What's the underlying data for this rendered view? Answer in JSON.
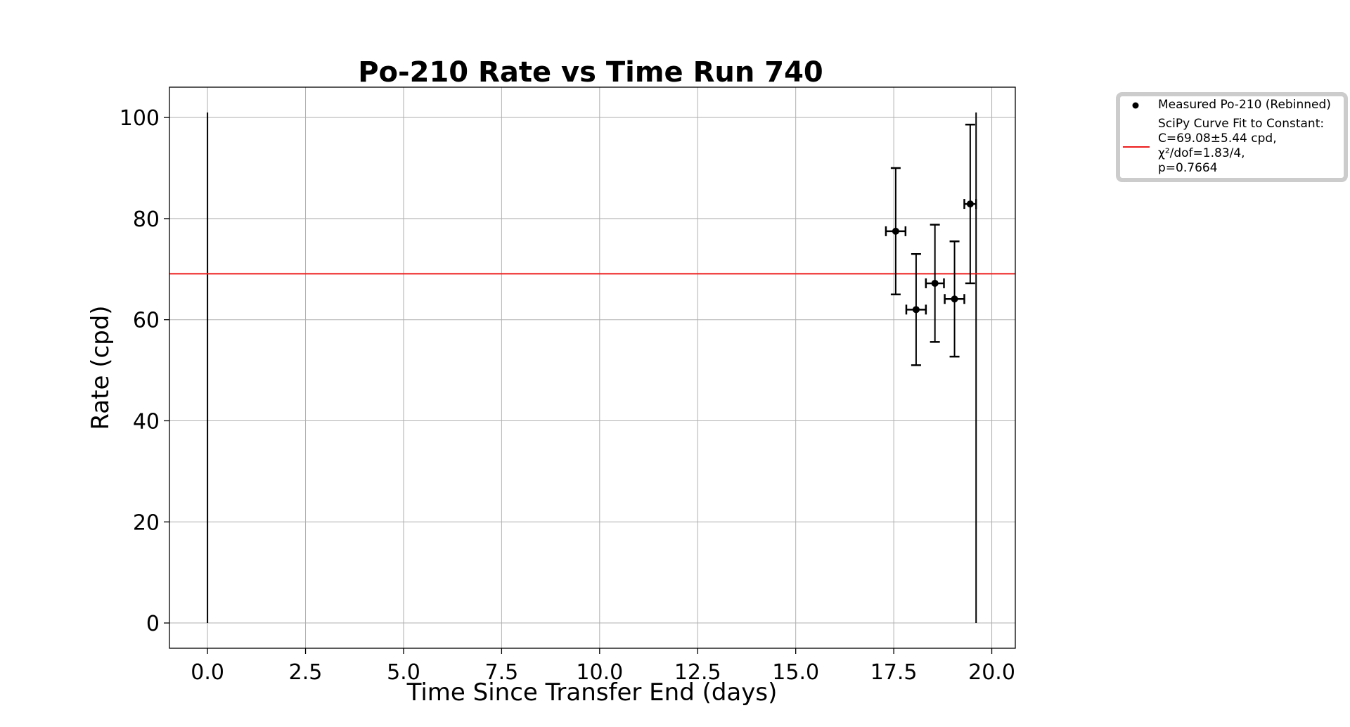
{
  "chart_data": {
    "type": "scatter",
    "title": "Po-210 Rate vs Time Run 740",
    "xlabel": "Time Since Transfer End (days)",
    "ylabel": "Rate (cpd)",
    "xlim": [
      -0.97,
      20.6
    ],
    "ylim": [
      -5,
      106
    ],
    "xticks": [
      "0.0",
      "2.5",
      "5.0",
      "7.5",
      "10.0",
      "12.5",
      "15.0",
      "17.5",
      "20.0"
    ],
    "yticks": [
      "0",
      "20",
      "40",
      "60",
      "80",
      "100"
    ],
    "grid": true,
    "legend_position": "outside-upper-right",
    "series": [
      {
        "name": "Measured Po-210 (Rebinned)",
        "kind": "errorbar",
        "color": "#000000",
        "points": [
          {
            "x": 17.55,
            "y": 77.5,
            "xerr": 0.25,
            "yerr": 12.5
          },
          {
            "x": 18.07,
            "y": 62.0,
            "xerr": 0.25,
            "yerr": 11.0
          },
          {
            "x": 18.55,
            "y": 67.2,
            "xerr": 0.23,
            "yerr": 11.6
          },
          {
            "x": 19.05,
            "y": 64.1,
            "xerr": 0.25,
            "yerr": 11.4
          },
          {
            "x": 19.45,
            "y": 82.9,
            "xerr": 0.15,
            "yerr": 15.7
          }
        ]
      },
      {
        "name": "SciPy Curve Fit to Constant:\nC=69.08±5.44 cpd,\nχ²/dof=1.83/4,\np=0.7664",
        "kind": "hline",
        "color": "#ee1c1c",
        "y": 69.08
      }
    ],
    "vlines": [
      {
        "x": 0.0,
        "ymin": 0,
        "ymax": 101
      },
      {
        "x": 19.6,
        "ymin": 0,
        "ymax": 101
      }
    ],
    "legend_entries": [
      "Measured Po-210 (Rebinned)",
      "SciPy Curve Fit to Constant:",
      "C=69.08±5.44 cpd,",
      "χ²/dof=1.83/4,",
      "p=0.7664"
    ]
  }
}
